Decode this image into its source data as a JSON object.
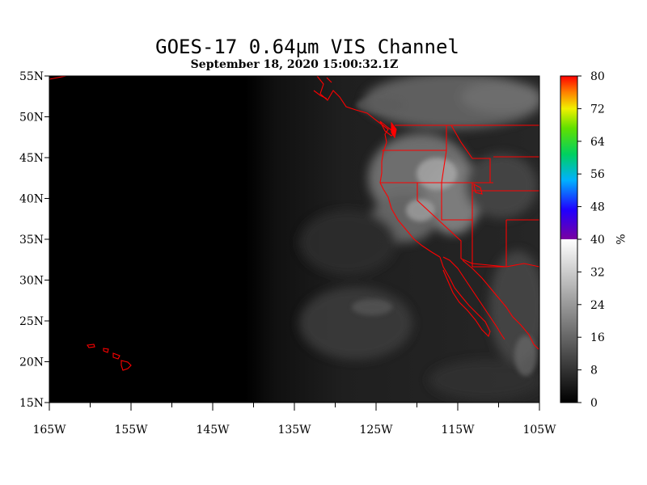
{
  "title": "GOES-17  0.64µm VIS Channel",
  "subtitle": "September 18,  2020 15:00:32.1Z",
  "axes": {
    "lat_labels": [
      "55N",
      "50N",
      "45N",
      "40N",
      "35N",
      "30N",
      "25N",
      "20N",
      "15N"
    ],
    "lat_values": [
      55,
      50,
      45,
      40,
      35,
      30,
      25,
      20,
      15
    ],
    "lon_labels": [
      "165W",
      "155W",
      "145W",
      "135W",
      "125W",
      "115W",
      "105W"
    ],
    "lon_values": [
      -165,
      -155,
      -145,
      -135,
      -125,
      -115,
      -105
    ],
    "lat_range": [
      15,
      55
    ],
    "lon_range": [
      -165,
      -105
    ]
  },
  "colorbar": {
    "tick_labels": [
      "80",
      "72",
      "64",
      "56",
      "48",
      "40",
      "32",
      "24",
      "16",
      "8",
      "0"
    ],
    "tick_values": [
      80,
      72,
      64,
      56,
      48,
      40,
      32,
      24,
      16,
      8,
      0
    ],
    "unit": "%",
    "range": [
      0,
      80
    ],
    "lower_scale": "grayscale 0-40",
    "upper_scale": "rainbow 40-80 (purple to red)"
  },
  "colors": {
    "boundaries": "#ff0000",
    "background": "#000000"
  }
}
